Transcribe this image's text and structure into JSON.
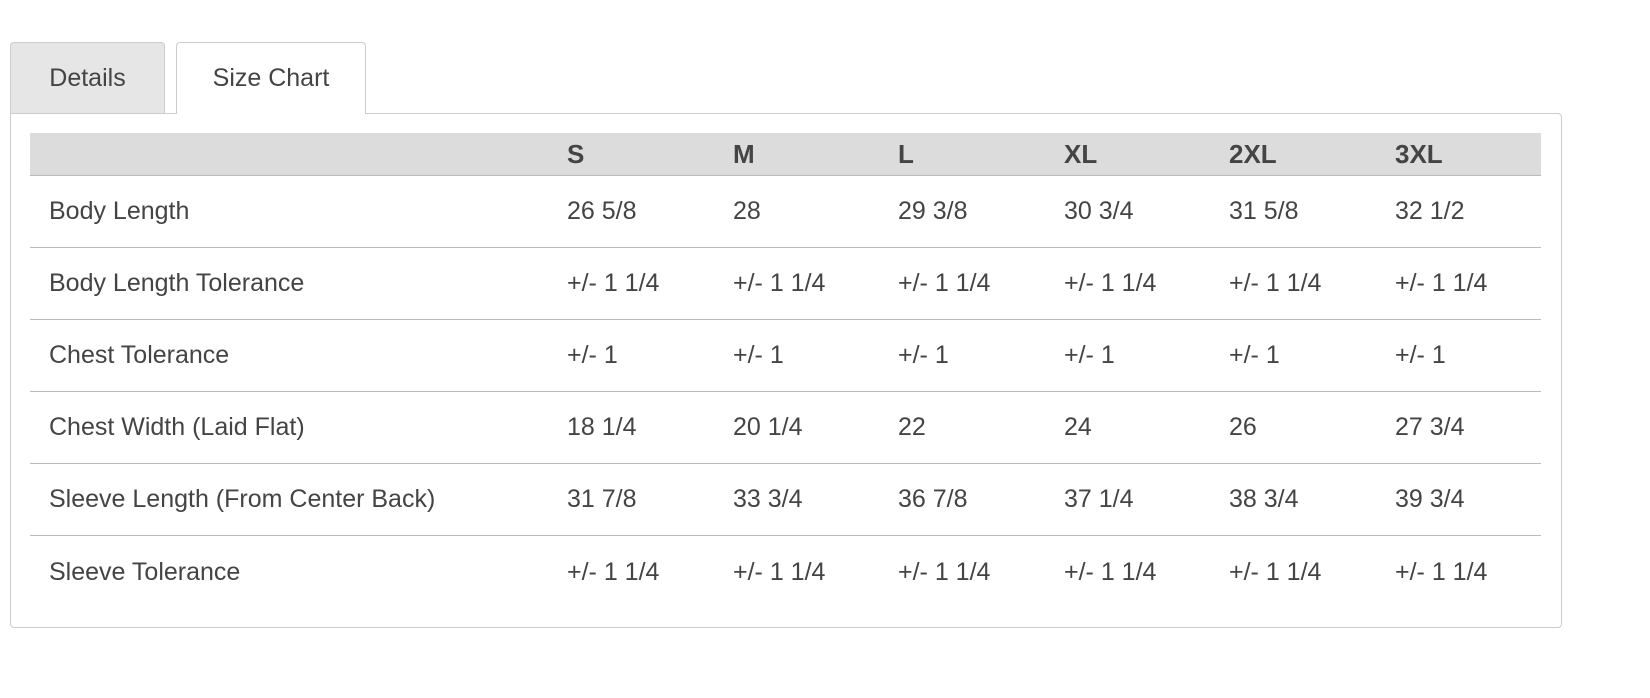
{
  "tabs": [
    "Details",
    "Size Chart"
  ],
  "table": {
    "sizes": [
      "S",
      "M",
      "L",
      "XL",
      "2XL",
      "3XL"
    ],
    "rows": [
      {
        "label": "Body Length",
        "values": [
          "26 5/8",
          "28",
          "29 3/8",
          "30 3/4",
          "31 5/8",
          "32 1/2"
        ]
      },
      {
        "label": "Body Length Tolerance",
        "values": [
          "+/- 1 1/4",
          "+/- 1 1/4",
          "+/- 1 1/4",
          "+/- 1 1/4",
          "+/- 1 1/4",
          "+/- 1 1/4"
        ]
      },
      {
        "label": "Chest Tolerance",
        "values": [
          "+/- 1",
          "+/- 1",
          "+/- 1",
          "+/- 1",
          "+/- 1",
          "+/- 1"
        ]
      },
      {
        "label": "Chest Width (Laid Flat)",
        "values": [
          "18 1/4",
          "20 1/4",
          "22",
          "24",
          "26",
          "27 3/4"
        ]
      },
      {
        "label": "Sleeve Length (From Center Back)",
        "values": [
          "31 7/8",
          "33 3/4",
          "36 7/8",
          "37 1/4",
          "38 3/4",
          "39 3/4"
        ]
      },
      {
        "label": "Sleeve Tolerance",
        "values": [
          "+/- 1 1/4",
          "+/- 1 1/4",
          "+/- 1 1/4",
          "+/- 1 1/4",
          "+/- 1 1/4",
          "+/- 1 1/4"
        ]
      }
    ]
  }
}
